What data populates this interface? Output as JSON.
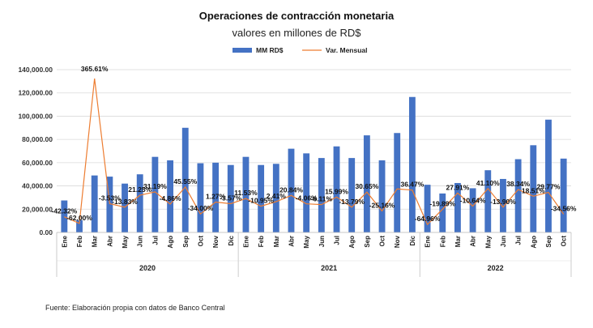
{
  "chart_data": {
    "type": "bar",
    "title": "Operaciones de contracción monetaria",
    "subtitle": "valores en millones de RD$",
    "ylim": [
      0,
      140000
    ],
    "yticks": [
      "0.00",
      "20,000.00",
      "40,000.00",
      "60,000.00",
      "80,000.00",
      "100,000.00",
      "120,000.00",
      "140,000.00"
    ],
    "ytick_values": [
      0,
      20000,
      40000,
      60000,
      80000,
      100000,
      120000,
      140000
    ],
    "legend_position": "top-center",
    "categories": [
      "Ene",
      "Feb",
      "Mar",
      "Abr",
      "May",
      "Jun",
      "Jul",
      "Ago",
      "Sep",
      "Oct",
      "Nov",
      "Dic",
      "Ene",
      "Feb",
      "Mar",
      "Abr",
      "May",
      "Jun",
      "Jul",
      "Ago",
      "Sep",
      "Oct",
      "Nov",
      "Dic",
      "Ene",
      "Feb",
      "Mar",
      "Abr",
      "May",
      "Jun",
      "Jul",
      "Ago",
      "Sep",
      "Oct"
    ],
    "groups": [
      {
        "label": "2020",
        "count": 12
      },
      {
        "label": "2021",
        "count": 12
      },
      {
        "label": "2022",
        "count": 10
      }
    ],
    "series": [
      {
        "name": "MM RD$",
        "kind": "bar",
        "color": "#4472C4",
        "values": [
          27500,
          10500,
          49000,
          48000,
          42000,
          50000,
          65000,
          62000,
          90000,
          59500,
          60000,
          58000,
          65000,
          58000,
          59000,
          72000,
          68000,
          64000,
          74000,
          64000,
          83500,
          62000,
          85500,
          116500,
          41000,
          33500,
          42500,
          38000,
          53500,
          46000,
          63000,
          75000,
          97000,
          63500
        ]
      },
      {
        "name": "Var. Mensual",
        "kind": "line",
        "color": "#ED7D31",
        "values": [
          -42.32,
          -62.0,
          365.61,
          -3.53,
          -13.83,
          21.25,
          31.19,
          -4.86,
          45.55,
          -34.0,
          1.27,
          -3.57,
          11.53,
          -10.95,
          2.41,
          20.84,
          -4.06,
          -6.11,
          15.99,
          -13.79,
          30.65,
          -25.16,
          null,
          36.47,
          -64.96,
          -19.89,
          27.91,
          -10.64,
          41.1,
          -13.9,
          38.34,
          18.51,
          29.77,
          -34.56
        ],
        "labels": [
          "-42.32%",
          "-62.00%",
          "365.61%",
          "-3.53%",
          "-13.83%",
          "21.25%",
          "31.19%",
          "-4.86%",
          "45.55%",
          "-34.00%",
          "1.27%",
          "-3.57%",
          "11.53%",
          "-10.95%",
          "2.41%",
          "20.84%",
          "-4.06%",
          "-6.11%",
          "15.99%",
          "-13.79%",
          "30.65%",
          "-25.16%",
          "",
          "36.47%",
          "-64.96%",
          "-19.89%",
          "27.91%",
          "-10.64%",
          "41.10%",
          "-13.90%",
          "38.34%",
          "18.51%",
          "29.77%",
          "-34.56%"
        ]
      }
    ]
  },
  "footer": {
    "source": "Fuente: Elaboración propia con datos de Banco Central"
  }
}
